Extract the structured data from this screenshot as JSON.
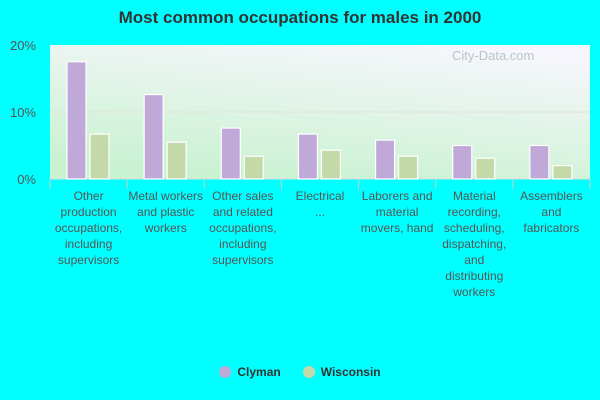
{
  "chart_data": {
    "type": "bar",
    "title": "Most common occupations for males in 2000",
    "categories": [
      "Other production occupations, including supervisors",
      "Metal workers and plastic workers",
      "Other sales and related occupations, including supervisors",
      "Electrical ...",
      "Laborers and material movers, hand",
      "Material recording, scheduling, dispatching, and distributing workers",
      "Assemblers and fabricators"
    ],
    "series": [
      {
        "name": "Clyman",
        "color": "#c0a8d8",
        "values": [
          17.5,
          12.6,
          7.6,
          6.7,
          5.8,
          5.0,
          5.0
        ]
      },
      {
        "name": "Wisconsin",
        "color": "#c4d9a8",
        "values": [
          6.7,
          5.5,
          3.4,
          4.3,
          3.4,
          3.1,
          2.0
        ]
      }
    ],
    "yticks": [
      "0%",
      "10%",
      "20%"
    ],
    "ylim": [
      0,
      20
    ],
    "grid": true,
    "legend_placement": "bottom",
    "watermark": "City-Data.com"
  }
}
